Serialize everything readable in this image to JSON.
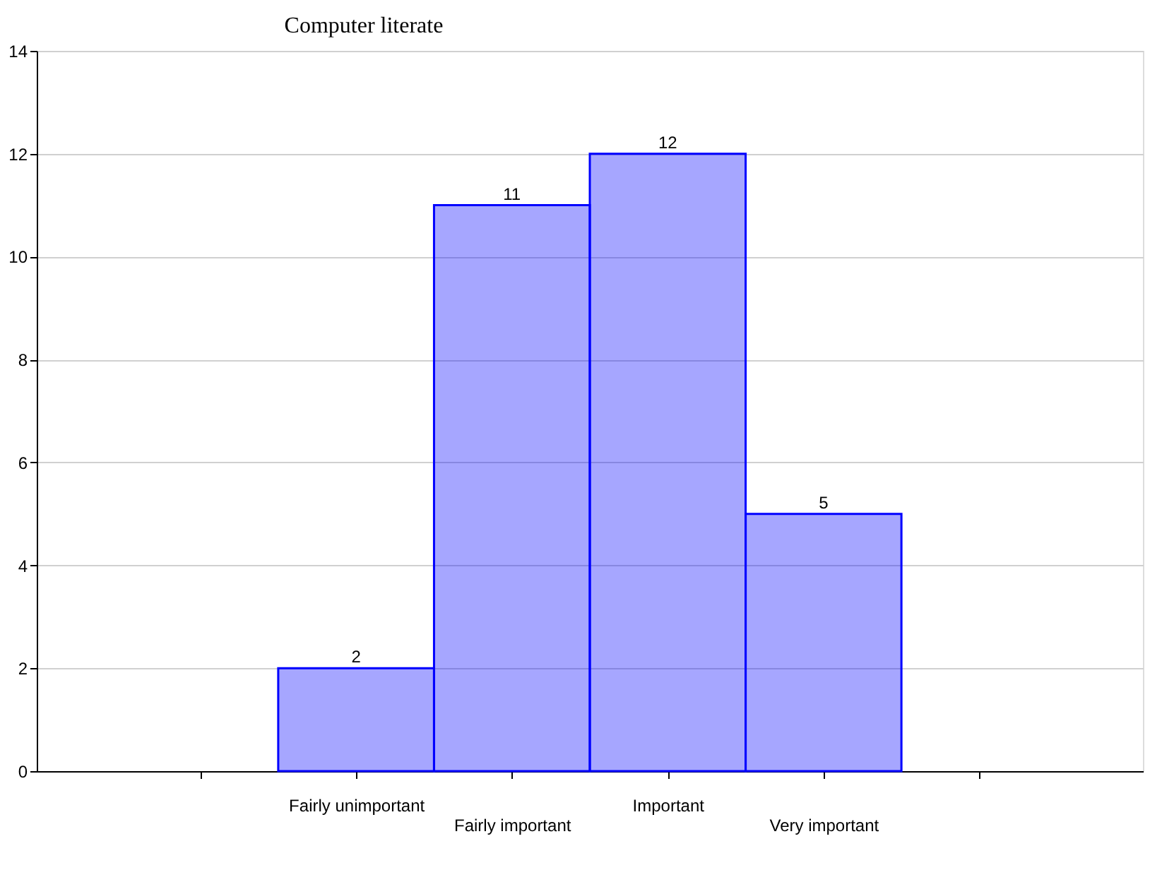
{
  "chart_data": {
    "type": "bar",
    "title": "Computer literate",
    "categories": [
      null,
      "Fairly unimportant",
      "Fairly important",
      "Important",
      "Very important",
      null
    ],
    "values": [
      null,
      2,
      11,
      12,
      5,
      null
    ],
    "color": "#0000ff",
    "ylim": [
      0,
      14
    ],
    "yticks": [
      0,
      2,
      4,
      6,
      8,
      10,
      12,
      14
    ],
    "grid": "y",
    "data_labels": true
  }
}
